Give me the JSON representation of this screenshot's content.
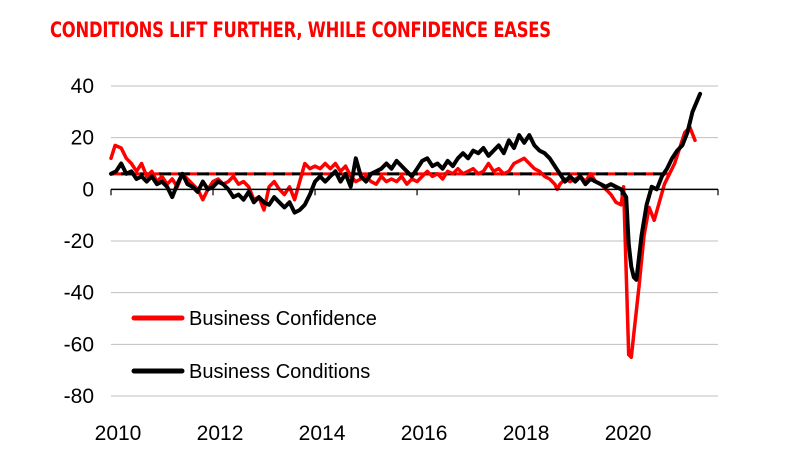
{
  "colors": {
    "title": "#ff0000",
    "confidence": "#ff0000",
    "conditions": "#000000",
    "grid": "#bfbfbf"
  },
  "chart_data": {
    "type": "line",
    "title": "CONDITIONS LIFT FURTHER, WHILE CONFIDENCE EASES",
    "xlabel": "",
    "ylabel": "",
    "xlim": [
      2010,
      2021.9
    ],
    "ylim": [
      -80,
      40
    ],
    "y_ticks": [
      40,
      20,
      0,
      -20,
      -40,
      -60,
      -80
    ],
    "y_tick_labels": [
      "40",
      "20",
      "0",
      "-20",
      "-40",
      "-60",
      "-80"
    ],
    "x_ticks": [
      2010,
      2012,
      2014,
      2016,
      2018,
      2020
    ],
    "x_tick_labels": [
      "2010",
      "2012",
      "2014",
      "2016",
      "2018",
      "2020"
    ],
    "grid": "horizontal",
    "legend": {
      "position": "bottom-left"
    },
    "reference_lines": [
      {
        "series": "Business Confidence",
        "y": 6,
        "style": "dashed"
      },
      {
        "series": "Business Conditions",
        "y": 6,
        "style": "dashed"
      }
    ],
    "series": [
      {
        "name": "Business Confidence",
        "points": [
          [
            2010.0,
            12
          ],
          [
            2010.08,
            17
          ],
          [
            2010.2,
            16
          ],
          [
            2010.3,
            12
          ],
          [
            2010.4,
            10
          ],
          [
            2010.5,
            7
          ],
          [
            2010.6,
            10
          ],
          [
            2010.7,
            5
          ],
          [
            2010.8,
            7
          ],
          [
            2010.9,
            3
          ],
          [
            2011.0,
            5
          ],
          [
            2011.1,
            2
          ],
          [
            2011.2,
            4
          ],
          [
            2011.3,
            1
          ],
          [
            2011.4,
            6
          ],
          [
            2011.5,
            4
          ],
          [
            2011.6,
            2
          ],
          [
            2011.7,
            0
          ],
          [
            2011.8,
            -4
          ],
          [
            2011.9,
            0
          ],
          [
            2012.0,
            3
          ],
          [
            2012.1,
            4
          ],
          [
            2012.2,
            2
          ],
          [
            2012.3,
            3
          ],
          [
            2012.4,
            5
          ],
          [
            2012.5,
            2
          ],
          [
            2012.6,
            3
          ],
          [
            2012.7,
            1
          ],
          [
            2012.8,
            -4
          ],
          [
            2012.9,
            -3
          ],
          [
            2013.0,
            -8
          ],
          [
            2013.1,
            1
          ],
          [
            2013.2,
            3
          ],
          [
            2013.3,
            0
          ],
          [
            2013.4,
            -2
          ],
          [
            2013.5,
            1
          ],
          [
            2013.6,
            -4
          ],
          [
            2013.7,
            3
          ],
          [
            2013.8,
            10
          ],
          [
            2013.9,
            8
          ],
          [
            2014.0,
            9
          ],
          [
            2014.1,
            8
          ],
          [
            2014.2,
            10
          ],
          [
            2014.3,
            8
          ],
          [
            2014.4,
            10
          ],
          [
            2014.5,
            7
          ],
          [
            2014.6,
            9
          ],
          [
            2014.7,
            5
          ],
          [
            2014.8,
            3
          ],
          [
            2014.9,
            4
          ],
          [
            2015.0,
            5
          ],
          [
            2015.1,
            3
          ],
          [
            2015.2,
            2
          ],
          [
            2015.3,
            5
          ],
          [
            2015.4,
            3
          ],
          [
            2015.5,
            4
          ],
          [
            2015.6,
            3
          ],
          [
            2015.7,
            5
          ],
          [
            2015.8,
            2
          ],
          [
            2015.9,
            4
          ],
          [
            2016.0,
            3
          ],
          [
            2016.1,
            5
          ],
          [
            2016.2,
            7
          ],
          [
            2016.3,
            5
          ],
          [
            2016.4,
            6
          ],
          [
            2016.5,
            4
          ],
          [
            2016.6,
            7
          ],
          [
            2016.7,
            6
          ],
          [
            2016.8,
            8
          ],
          [
            2016.9,
            6
          ],
          [
            2017.0,
            7
          ],
          [
            2017.1,
            8
          ],
          [
            2017.2,
            6
          ],
          [
            2017.3,
            7
          ],
          [
            2017.4,
            10
          ],
          [
            2017.5,
            7
          ],
          [
            2017.6,
            8
          ],
          [
            2017.7,
            6
          ],
          [
            2017.8,
            7
          ],
          [
            2017.9,
            10
          ],
          [
            2018.0,
            11
          ],
          [
            2018.1,
            12
          ],
          [
            2018.2,
            10
          ],
          [
            2018.3,
            8
          ],
          [
            2018.4,
            7
          ],
          [
            2018.5,
            5
          ],
          [
            2018.6,
            4
          ],
          [
            2018.7,
            2
          ],
          [
            2018.75,
            0
          ],
          [
            2018.8,
            2
          ],
          [
            2018.9,
            4
          ],
          [
            2019.0,
            3
          ],
          [
            2019.1,
            4
          ],
          [
            2019.2,
            5
          ],
          [
            2019.3,
            3
          ],
          [
            2019.4,
            6
          ],
          [
            2019.5,
            3
          ],
          [
            2019.6,
            2
          ],
          [
            2019.7,
            0
          ],
          [
            2019.8,
            -2
          ],
          [
            2019.9,
            -5
          ],
          [
            2020.0,
            -6
          ],
          [
            2020.05,
            1
          ],
          [
            2020.15,
            -64
          ],
          [
            2020.2,
            -65
          ],
          [
            2020.25,
            -56
          ],
          [
            2020.35,
            -38
          ],
          [
            2020.45,
            -18
          ],
          [
            2020.55,
            -7
          ],
          [
            2020.65,
            -12
          ],
          [
            2020.75,
            -5
          ],
          [
            2020.85,
            2
          ],
          [
            2020.95,
            6
          ],
          [
            2021.05,
            10
          ],
          [
            2021.15,
            16
          ],
          [
            2021.25,
            22
          ],
          [
            2021.35,
            24
          ],
          [
            2021.45,
            19
          ]
        ]
      },
      {
        "name": "Business Conditions",
        "points": [
          [
            2010.0,
            6
          ],
          [
            2010.1,
            7
          ],
          [
            2010.2,
            10
          ],
          [
            2010.3,
            6
          ],
          [
            2010.4,
            7
          ],
          [
            2010.5,
            4
          ],
          [
            2010.6,
            5
          ],
          [
            2010.7,
            3
          ],
          [
            2010.8,
            5
          ],
          [
            2010.9,
            2
          ],
          [
            2011.0,
            3
          ],
          [
            2011.1,
            1
          ],
          [
            2011.2,
            -3
          ],
          [
            2011.3,
            2
          ],
          [
            2011.4,
            6
          ],
          [
            2011.5,
            2
          ],
          [
            2011.6,
            1
          ],
          [
            2011.7,
            -1
          ],
          [
            2011.8,
            3
          ],
          [
            2011.9,
            0
          ],
          [
            2012.0,
            1
          ],
          [
            2012.1,
            3
          ],
          [
            2012.2,
            2
          ],
          [
            2012.3,
            0
          ],
          [
            2012.4,
            -3
          ],
          [
            2012.5,
            -2
          ],
          [
            2012.6,
            -4
          ],
          [
            2012.7,
            -1
          ],
          [
            2012.8,
            -5
          ],
          [
            2012.9,
            -3
          ],
          [
            2013.0,
            -5
          ],
          [
            2013.1,
            -6
          ],
          [
            2013.2,
            -3
          ],
          [
            2013.3,
            -5
          ],
          [
            2013.4,
            -7
          ],
          [
            2013.5,
            -5
          ],
          [
            2013.6,
            -9
          ],
          [
            2013.7,
            -8
          ],
          [
            2013.8,
            -6
          ],
          [
            2013.9,
            -2
          ],
          [
            2014.0,
            3
          ],
          [
            2014.1,
            5
          ],
          [
            2014.2,
            3
          ],
          [
            2014.3,
            5
          ],
          [
            2014.4,
            7
          ],
          [
            2014.5,
            3
          ],
          [
            2014.6,
            6
          ],
          [
            2014.7,
            1
          ],
          [
            2014.8,
            12
          ],
          [
            2014.9,
            5
          ],
          [
            2015.0,
            3
          ],
          [
            2015.1,
            6
          ],
          [
            2015.2,
            7
          ],
          [
            2015.3,
            8
          ],
          [
            2015.4,
            10
          ],
          [
            2015.5,
            8
          ],
          [
            2015.6,
            11
          ],
          [
            2015.7,
            9
          ],
          [
            2015.8,
            7
          ],
          [
            2015.9,
            5
          ],
          [
            2016.0,
            8
          ],
          [
            2016.1,
            11
          ],
          [
            2016.2,
            12
          ],
          [
            2016.3,
            9
          ],
          [
            2016.4,
            10
          ],
          [
            2016.5,
            8
          ],
          [
            2016.6,
            11
          ],
          [
            2016.7,
            9
          ],
          [
            2016.8,
            12
          ],
          [
            2016.9,
            14
          ],
          [
            2017.0,
            12
          ],
          [
            2017.1,
            15
          ],
          [
            2017.2,
            14
          ],
          [
            2017.3,
            16
          ],
          [
            2017.4,
            13
          ],
          [
            2017.5,
            15
          ],
          [
            2017.6,
            17
          ],
          [
            2017.7,
            14
          ],
          [
            2017.8,
            19
          ],
          [
            2017.9,
            16
          ],
          [
            2018.0,
            21
          ],
          [
            2018.1,
            18
          ],
          [
            2018.2,
            21
          ],
          [
            2018.3,
            17
          ],
          [
            2018.4,
            15
          ],
          [
            2018.5,
            14
          ],
          [
            2018.6,
            12
          ],
          [
            2018.7,
            9
          ],
          [
            2018.8,
            6
          ],
          [
            2018.9,
            3
          ],
          [
            2019.0,
            5
          ],
          [
            2019.1,
            3
          ],
          [
            2019.2,
            5
          ],
          [
            2019.3,
            2
          ],
          [
            2019.4,
            4
          ],
          [
            2019.5,
            3
          ],
          [
            2019.6,
            2
          ],
          [
            2019.7,
            1
          ],
          [
            2019.8,
            2
          ],
          [
            2019.9,
            1
          ],
          [
            2020.0,
            0
          ],
          [
            2020.1,
            -3
          ],
          [
            2020.15,
            -21
          ],
          [
            2020.2,
            -30
          ],
          [
            2020.25,
            -34
          ],
          [
            2020.3,
            -35
          ],
          [
            2020.4,
            -18
          ],
          [
            2020.5,
            -6
          ],
          [
            2020.6,
            1
          ],
          [
            2020.7,
            0
          ],
          [
            2020.8,
            5
          ],
          [
            2020.9,
            8
          ],
          [
            2021.0,
            12
          ],
          [
            2021.1,
            15
          ],
          [
            2021.2,
            17
          ],
          [
            2021.3,
            22
          ],
          [
            2021.4,
            30
          ],
          [
            2021.55,
            37
          ]
        ]
      }
    ]
  }
}
